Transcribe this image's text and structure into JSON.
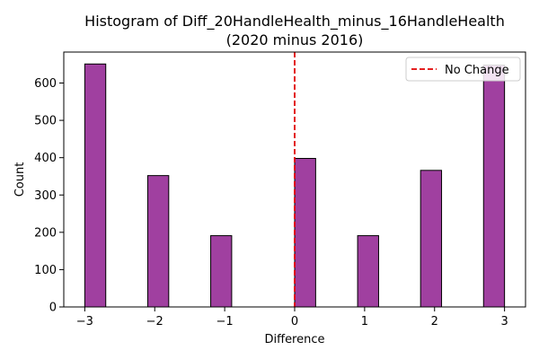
{
  "chart_data": {
    "type": "bar",
    "title_line1": "Histogram of Diff_20HandleHealth_minus_16HandleHealth",
    "title_line2": "(2020 minus 2016)",
    "xlabel": "Difference",
    "ylabel": "Count",
    "xlim": [
      -3.3,
      3.3
    ],
    "ylim": [
      0,
      683
    ],
    "x_ticks": [
      -3,
      -2,
      -1,
      0,
      1,
      2,
      3
    ],
    "x_tick_labels": [
      "−3",
      "−2",
      "−1",
      "0",
      "1",
      "2",
      "3"
    ],
    "y_ticks": [
      0,
      100,
      200,
      300,
      400,
      500,
      600
    ],
    "y_tick_labels": [
      "0",
      "100",
      "200",
      "300",
      "400",
      "500",
      "600"
    ],
    "bars": [
      {
        "x0": -3.0,
        "x1": -2.7,
        "count": 651
      },
      {
        "x0": -2.1,
        "x1": -1.8,
        "count": 352
      },
      {
        "x0": -1.2,
        "x1": -0.9,
        "count": 191
      },
      {
        "x0": 0.0,
        "x1": 0.3,
        "count": 398
      },
      {
        "x0": 0.9,
        "x1": 1.2,
        "count": 191
      },
      {
        "x0": 1.8,
        "x1": 2.1,
        "count": 366
      },
      {
        "x0": 2.7,
        "x1": 3.0,
        "count": 648
      }
    ],
    "bar_color": "#a040a0",
    "bar_edge_color": "#000000",
    "reference_line": {
      "x": 0,
      "label": "No Change",
      "color": "#e00000",
      "style": "dashed"
    },
    "legend_placement": "top-right",
    "grid": false
  }
}
